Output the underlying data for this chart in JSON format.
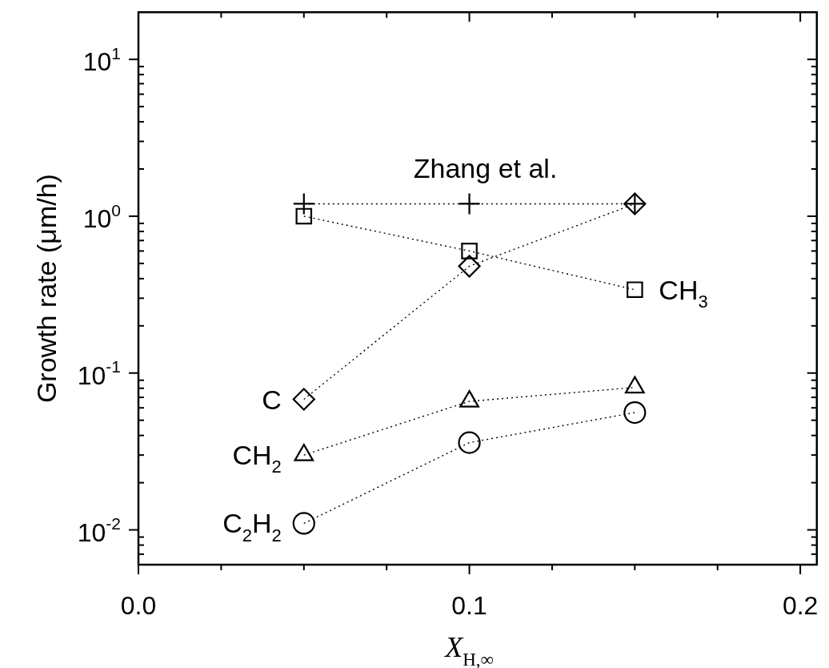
{
  "chart_data": {
    "type": "scatter",
    "xlabel": "X$_{H,∞}$",
    "ylabel": "Growth rate (μm/h)",
    "log": "y",
    "line_style": "dotted",
    "legend": false,
    "grid": false,
    "xlim": [
      0,
      0.205
    ],
    "ylim": [
      0.006,
      20
    ],
    "xticks": [
      {
        "value": 0,
        "label": "0.0"
      },
      {
        "value": 0.025,
        "label": null
      },
      {
        "value": 0.05,
        "label": null
      },
      {
        "value": 0.075,
        "label": null
      },
      {
        "value": 0.1,
        "label": "0.1"
      },
      {
        "value": 0.125,
        "label": null
      },
      {
        "value": 0.15,
        "label": null
      },
      {
        "value": 0.175,
        "label": null
      },
      {
        "value": 0.2,
        "label": "0.2"
      }
    ],
    "yticks": [
      {
        "value": 0.007,
        "label": null
      },
      {
        "value": 0.008,
        "label": null
      },
      {
        "value": 0.009,
        "label": null
      },
      {
        "value": 0.01,
        "label": "10$^{-2}$"
      },
      {
        "value": 0.02,
        "label": null
      },
      {
        "value": 0.03,
        "label": null
      },
      {
        "value": 0.04,
        "label": null
      },
      {
        "value": 0.05,
        "label": null
      },
      {
        "value": 0.06,
        "label": null
      },
      {
        "value": 0.07,
        "label": null
      },
      {
        "value": 0.08,
        "label": null
      },
      {
        "value": 0.09,
        "label": null
      },
      {
        "value": 0.1,
        "label": "10$^{-1}$"
      },
      {
        "value": 0.2,
        "label": null
      },
      {
        "value": 0.3,
        "label": null
      },
      {
        "value": 0.4,
        "label": null
      },
      {
        "value": 0.5,
        "label": null
      },
      {
        "value": 0.6,
        "label": null
      },
      {
        "value": 0.7,
        "label": null
      },
      {
        "value": 0.8,
        "label": null
      },
      {
        "value": 0.9,
        "label": null
      },
      {
        "value": 1,
        "label": "10$^{0}$"
      },
      {
        "value": 2,
        "label": null
      },
      {
        "value": 3,
        "label": null
      },
      {
        "value": 4,
        "label": null
      },
      {
        "value": 5,
        "label": null
      },
      {
        "value": 6,
        "label": null
      },
      {
        "value": 7,
        "label": null
      },
      {
        "value": 8,
        "label": null
      },
      {
        "value": 9,
        "label": null
      },
      {
        "value": 10,
        "label": "10$^{1}$"
      }
    ],
    "x": [
      0.05,
      0.1,
      0.15
    ],
    "series": [
      {
        "name": "Zhang et al.",
        "color": "#000000",
        "marker": "cross",
        "values": [
          1.2,
          1.2,
          1.2
        ]
      },
      {
        "name": "CH$_{3}$",
        "color": "#000000",
        "marker": "square",
        "values": [
          1.0,
          0.6,
          0.34
        ]
      },
      {
        "name": "C",
        "color": "#000000",
        "marker": "diamond",
        "values": [
          0.068,
          0.48,
          1.2
        ]
      },
      {
        "name": "CH$_{2}$",
        "color": "#000000",
        "marker": "triangle",
        "values": [
          0.03,
          0.066,
          0.081
        ]
      },
      {
        "name": "C$_{2}$H$_{2}$",
        "color": "#000000",
        "marker": "circle",
        "values": [
          0.011,
          0.036,
          0.056
        ]
      }
    ]
  }
}
